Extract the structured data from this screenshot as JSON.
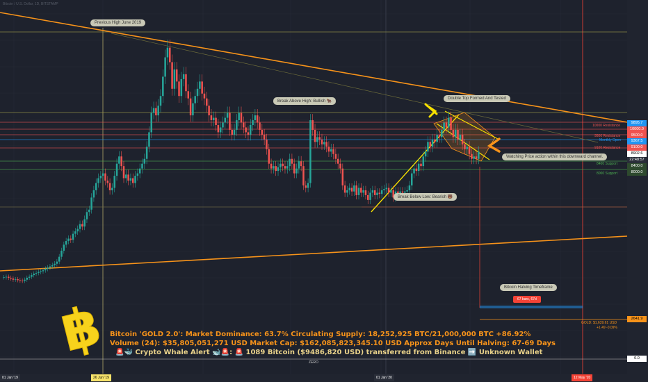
{
  "chart_data": {
    "type": "candlestick",
    "symbol_header": "Bitcoin / U.S. Dollar, 1D, BITSTAMP",
    "x_labels": [
      "01 Jan '19",
      "26 Jun '19",
      "01 Jan '20",
      "12 May '20"
    ],
    "annotations": {
      "previous_high": "Previous High June 2019",
      "break_above": "Break Above High: Bullish 🐂",
      "double_top": "Double Top Formed And Tested",
      "break_below": "Break Below Low: Bearish 🐻",
      "watching": "Watching Price action within this downward channel.",
      "halving": "Bitcoin Halving Timeframe",
      "bars": "67 bars, 67d"
    },
    "price_levels": [
      {
        "text": "10000 Resistance",
        "color": "#ef5350",
        "label": "10000.0"
      },
      {
        "text": "9500 Resistance",
        "color": "#ef5350",
        "label": "9500.0"
      },
      {
        "text": "Monthly Open",
        "color": "#2196f3",
        "label": "9367.5"
      },
      {
        "text": "9100 Resistance",
        "color": "#ef5350",
        "label": "9100.0"
      },
      {
        "text": "8400 Support",
        "color": "#4caf50",
        "label": "8400.0"
      },
      {
        "text": "8000 Support",
        "color": "#4caf50",
        "label": "8000.0"
      }
    ],
    "price_labels": {
      "current": "9895.7",
      "live": "8902.6",
      "time": "22:48:57",
      "gold": "2641.9",
      "zero": "0.0"
    },
    "gold_text": "GOLD: $1,639.61 USD",
    "gold_change": "+1.49 -0.09%",
    "zero_text": "ZERO",
    "candles_close": [
      3700,
      3720,
      3680,
      3650,
      3600,
      3620,
      3580,
      3560,
      3550,
      3600,
      3680,
      3720,
      3790,
      3850,
      3880,
      3920,
      3950,
      3990,
      4050,
      4100,
      4150,
      4200,
      4260,
      4350,
      4550,
      4800,
      5050,
      5200,
      5300,
      5250,
      5500,
      5600,
      5700,
      5900,
      5800,
      6100,
      6400,
      6500,
      7000,
      7300,
      7600,
      7800,
      7900,
      8000,
      7700,
      7600,
      7300,
      7400,
      7900,
      8400,
      8700,
      8300,
      7800,
      7950,
      7700,
      7800,
      7600,
      7900,
      8000,
      8200,
      8400,
      8600,
      9100,
      9700,
      10500,
      10700,
      10400,
      10800,
      11200,
      12000,
      12800,
      13200,
      12600,
      11500,
      12300,
      11800,
      11200,
      11900,
      12100,
      11400,
      11100,
      10400,
      10900,
      11200,
      11500,
      11800,
      11300,
      11100,
      10800,
      10400,
      10200,
      10300,
      10000,
      9700,
      9900,
      10100,
      10300,
      10500,
      9800,
      9600,
      9800,
      10200,
      10500,
      10100,
      9900,
      9700,
      9600,
      10000,
      10200,
      10400,
      10100,
      9800,
      9600,
      9400,
      9000,
      8400,
      8200,
      8300,
      8100,
      8250,
      8400,
      8300,
      8200,
      8300,
      8600,
      8400,
      8000,
      8200,
      8500,
      8300,
      7500,
      7400,
      7600,
      10200,
      9800,
      9300,
      9500,
      9400,
      9200,
      9300,
      9100,
      8900,
      9000,
      8800,
      8600,
      8400,
      8200,
      7500,
      7200,
      7300,
      7400,
      7250,
      7500,
      7100,
      7400,
      7200,
      7300,
      7100,
      6900,
      7200,
      7300,
      7100,
      7200,
      7150,
      7300,
      7350,
      7400,
      7200,
      7300,
      7000,
      7250,
      7150,
      7250,
      7200,
      7250,
      7300,
      7500,
      8000,
      8200,
      8100,
      8400,
      8300,
      8700,
      8900,
      9300,
      9100,
      9400,
      9300,
      9600,
      9500,
      9800,
      10100,
      9900,
      10300,
      9800,
      9500,
      9800,
      9400,
      9600,
      9200,
      9000,
      9100,
      8800,
      8600,
      8700,
      8600,
      8900
    ]
  }
}
